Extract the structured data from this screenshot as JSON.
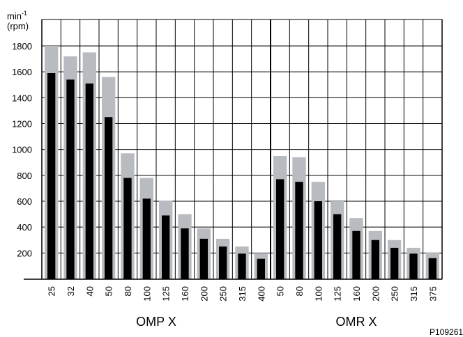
{
  "chart_data": {
    "type": "bar",
    "ylabel_unit": "min",
    "ylabel_unit_exponent": "-1",
    "ylabel_alt": "(rpm)",
    "ylim": [
      0,
      1900
    ],
    "yticks": [
      200,
      400,
      600,
      800,
      1000,
      1200,
      1400,
      1600,
      1800
    ],
    "yticklabels": [
      "200",
      "400",
      "600",
      "800",
      "1000",
      "1200",
      "1400",
      "1600",
      "1800"
    ],
    "grid": true,
    "groups": [
      {
        "label": "OMP X",
        "categories": [
          "25",
          "32",
          "40",
          "50",
          "80",
          "100",
          "125",
          "160",
          "200",
          "250",
          "315",
          "400"
        ],
        "series": [
          {
            "values": [
              1800,
              1720,
              1750,
              1560,
              970,
              780,
              605,
              500,
              390,
              310,
              250,
              200
            ]
          },
          {
            "values": [
              1590,
              1540,
              1510,
              1250,
              780,
              620,
              490,
              390,
              310,
              250,
              195,
              155
            ]
          }
        ]
      },
      {
        "label": "OMR X",
        "categories": [
          "50",
          "80",
          "100",
          "125",
          "160",
          "200",
          "250",
          "315",
          "375"
        ],
        "series": [
          {
            "values": [
              950,
              940,
              750,
              600,
              470,
              370,
              300,
              240,
              205
            ]
          },
          {
            "values": [
              770,
              750,
              600,
              500,
              370,
              300,
              240,
              195,
              160
            ]
          }
        ]
      }
    ],
    "colors": [
      "#b8bcc0",
      "#000000"
    ]
  },
  "reference_code": "P109261"
}
